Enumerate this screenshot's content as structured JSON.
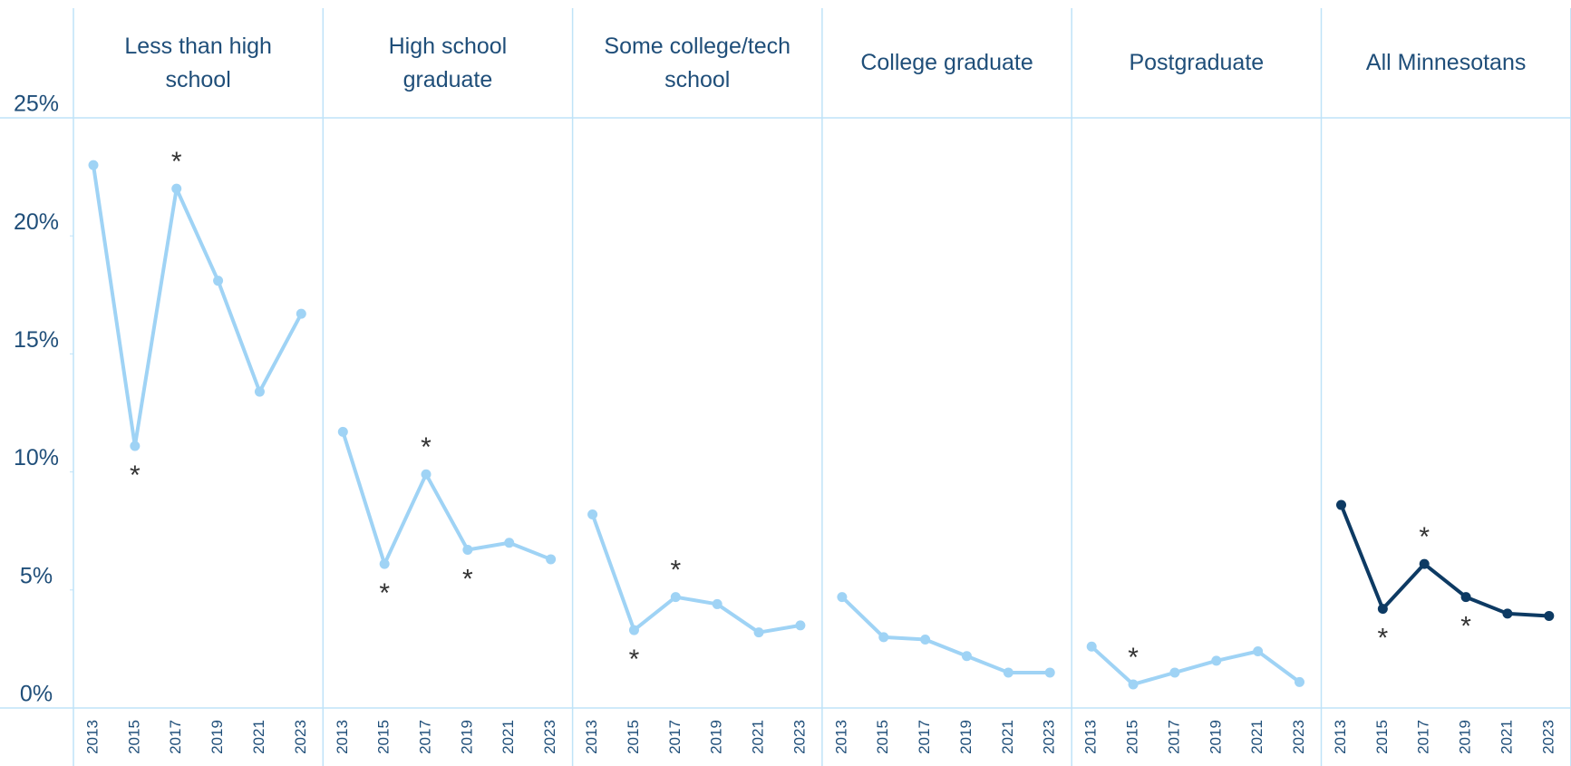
{
  "chart_data": [
    {
      "type": "line",
      "title": "Less than high school",
      "x": [
        2013,
        2015,
        2017,
        2019,
        2021,
        2023
      ],
      "values": [
        23.0,
        11.1,
        22.0,
        18.1,
        13.4,
        16.7
      ],
      "color": "#9fd3f5",
      "ylim": [
        0,
        25
      ],
      "yticks": [
        {
          "value": 0,
          "label": "0%"
        },
        {
          "value": 5,
          "label": "5%"
        },
        {
          "value": 10,
          "label": "10%"
        },
        {
          "value": 15,
          "label": "15%"
        },
        {
          "value": 20,
          "label": "20%"
        },
        {
          "value": 25,
          "label": "25%"
        }
      ],
      "annotations": [
        {
          "x": 2015,
          "text": "*",
          "position": "below"
        },
        {
          "x": 2017,
          "text": "*",
          "position": "above"
        }
      ]
    },
    {
      "type": "line",
      "title": "High school graduate",
      "x": [
        2013,
        2015,
        2017,
        2019,
        2021,
        2023
      ],
      "values": [
        11.7,
        6.1,
        9.9,
        6.7,
        7.0,
        6.3
      ],
      "color": "#9fd3f5",
      "ylim": [
        0,
        25
      ],
      "annotations": [
        {
          "x": 2015,
          "text": "*",
          "position": "below"
        },
        {
          "x": 2017,
          "text": "*",
          "position": "above"
        },
        {
          "x": 2019,
          "text": "*",
          "position": "below"
        }
      ]
    },
    {
      "type": "line",
      "title": "Some college/tech school",
      "x": [
        2013,
        2015,
        2017,
        2019,
        2021,
        2023
      ],
      "values": [
        8.2,
        3.3,
        4.7,
        4.4,
        3.2,
        3.5
      ],
      "color": "#9fd3f5",
      "ylim": [
        0,
        25
      ],
      "annotations": [
        {
          "x": 2015,
          "text": "*",
          "position": "below"
        },
        {
          "x": 2017,
          "text": "*",
          "position": "above"
        }
      ]
    },
    {
      "type": "line",
      "title": "College graduate",
      "x": [
        2013,
        2015,
        2017,
        2019,
        2021,
        2023
      ],
      "values": [
        4.7,
        3.0,
        2.9,
        2.2,
        1.5,
        1.5
      ],
      "color": "#9fd3f5",
      "ylim": [
        0,
        25
      ]
    },
    {
      "type": "line",
      "title": "Postgraduate",
      "x": [
        2013,
        2015,
        2017,
        2019,
        2021,
        2023
      ],
      "values": [
        2.6,
        1.0,
        1.5,
        2.0,
        2.4,
        1.1
      ],
      "color": "#9fd3f5",
      "ylim": [
        0,
        25
      ],
      "annotations": [
        {
          "x": 2015,
          "text": "*",
          "position": "above"
        }
      ]
    },
    {
      "type": "line",
      "title": "All Minnesotans",
      "x": [
        2013,
        2015,
        2017,
        2019,
        2021,
        2023
      ],
      "values": [
        8.6,
        4.2,
        6.1,
        4.7,
        4.0,
        3.9
      ],
      "color": "#0d3a63",
      "ylim": [
        0,
        25
      ],
      "annotations": [
        {
          "x": 2015,
          "text": "*",
          "position": "below"
        },
        {
          "x": 2017,
          "text": "*",
          "position": "above"
        },
        {
          "x": 2019,
          "text": "*",
          "position": "below"
        }
      ]
    }
  ]
}
